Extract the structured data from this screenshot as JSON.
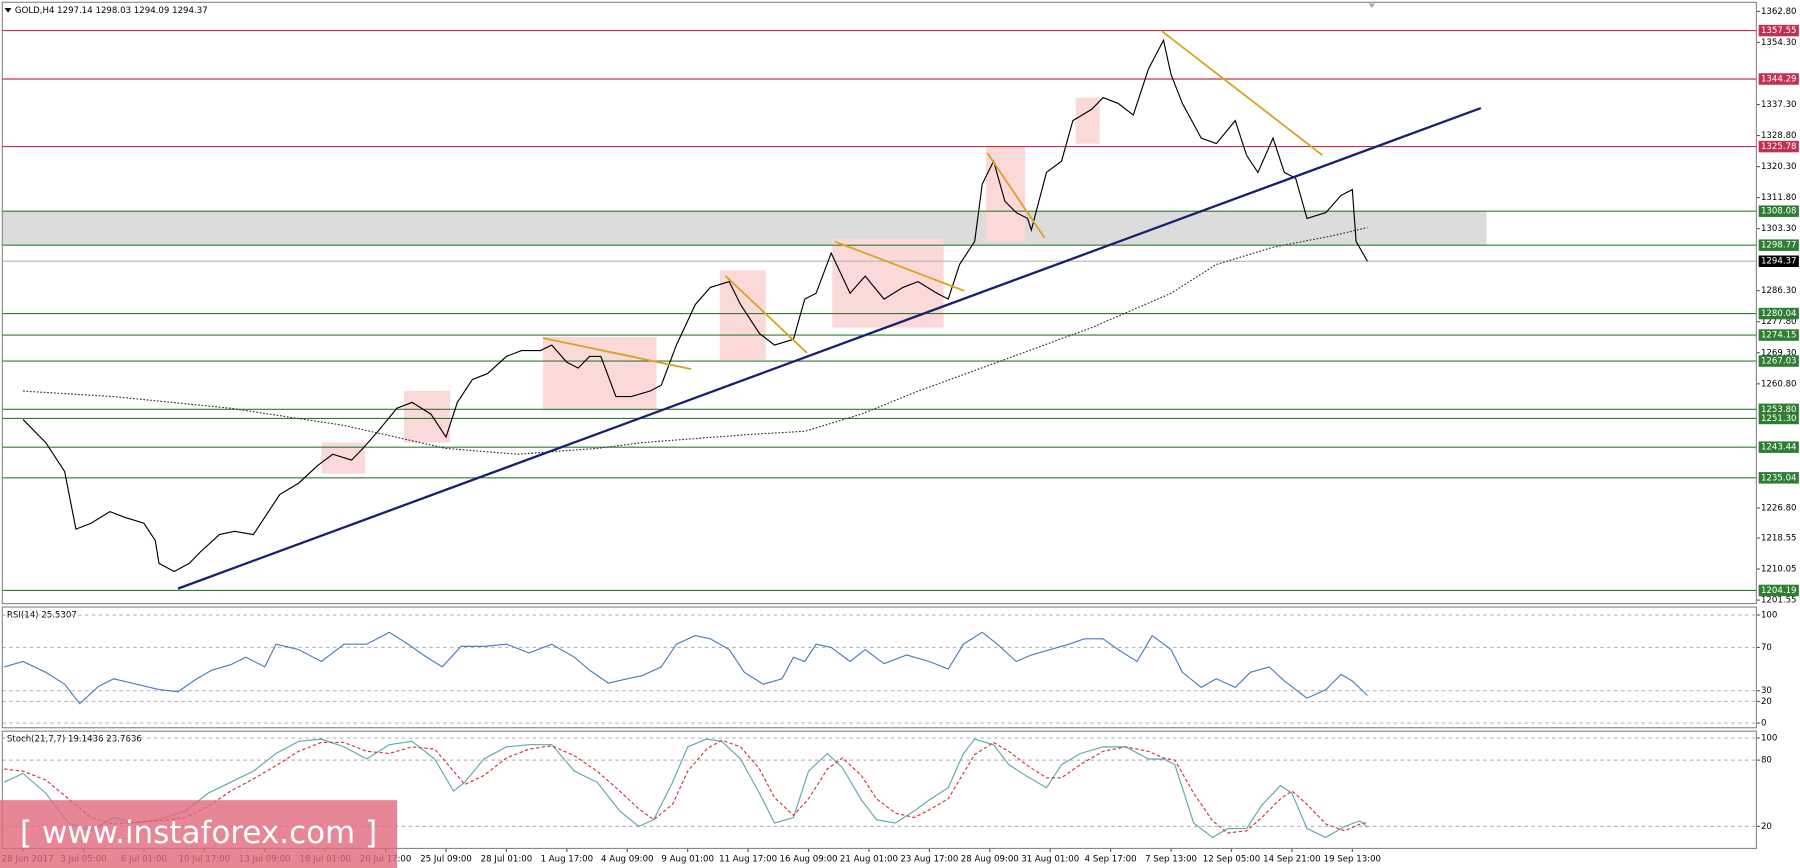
{
  "chart_data": [
    {
      "type": "line",
      "title": "GOLD,H4 1297.14 1298.03 1294.09 1294.37",
      "xlim": [
        -5.5,
        459
      ],
      "xticks": [
        {
          "value": 0,
          "label": "28 Jun 2017"
        },
        {
          "value": 16,
          "label": "3 Jul 05:00"
        },
        {
          "value": 32,
          "label": "6 Jul 01:00"
        },
        {
          "value": 48,
          "label": "10 Jul 17:00"
        },
        {
          "value": 64,
          "label": "13 Jul 09:00"
        },
        {
          "value": 80,
          "label": "18 Jul 01:00"
        },
        {
          "value": 96,
          "label": "20 Jul 17:00"
        },
        {
          "value": 112,
          "label": "25 Jul 09:00"
        },
        {
          "value": 128,
          "label": "28 Jul 01:00"
        },
        {
          "value": 144,
          "label": "1 Aug 17:00"
        },
        {
          "value": 160,
          "label": "4 Aug 09:00"
        },
        {
          "value": 176,
          "label": "9 Aug 01:00"
        },
        {
          "value": 192,
          "label": "11 Aug 17:00"
        },
        {
          "value": 208,
          "label": "16 Aug 09:00"
        },
        {
          "value": 224,
          "label": "21 Aug 01:00"
        },
        {
          "value": 240,
          "label": "23 Aug 17:00"
        },
        {
          "value": 256,
          "label": "28 Aug 09:00"
        },
        {
          "value": 272,
          "label": "31 Aug 01:00"
        },
        {
          "value": 288,
          "label": "4 Sep 17:00"
        },
        {
          "value": 304,
          "label": "7 Sep 13:00"
        },
        {
          "value": 320,
          "label": "12 Sep 05:00"
        },
        {
          "value": 336,
          "label": "14 Sep 21:00"
        },
        {
          "value": 352,
          "label": "19 Sep 13:00"
        }
      ],
      "ylim": [
        1200.6,
        1365.3
      ],
      "yticks": [
        {
          "value": 1362.8,
          "label": "1362.80"
        },
        {
          "value": 1354.3,
          "label": "1354.30"
        },
        {
          "value": 1337.3,
          "label": "1337.30"
        },
        {
          "value": 1328.8,
          "label": "1328.80"
        },
        {
          "value": 1320.3,
          "label": "1320.30"
        },
        {
          "value": 1311.8,
          "label": "1311.80"
        },
        {
          "value": 1303.3,
          "label": "1303.30"
        },
        {
          "value": 1286.3,
          "label": "1286.30"
        },
        {
          "value": 1277.8,
          "label": "1277.80"
        },
        {
          "value": 1269.3,
          "label": "1269.30"
        },
        {
          "value": 1260.8,
          "label": "1260.80"
        },
        {
          "value": 1226.8,
          "label": "1226.80"
        },
        1218.55,
        1210.05,
        1201.55
      ],
      "series": [
        {
          "color": "#000000",
          "x": [
            0,
            6,
            11,
            14,
            18,
            23,
            27,
            32,
            35,
            36,
            40,
            44,
            47,
            52,
            56,
            61,
            65,
            68,
            73,
            78,
            82,
            87,
            90,
            94,
            99,
            103,
            108,
            112,
            115,
            119,
            123,
            128,
            132,
            137,
            140,
            144,
            147,
            150,
            153,
            157,
            161,
            166,
            169,
            173,
            178,
            182,
            187,
            190,
            195,
            199,
            204,
            207,
            210,
            214,
            219,
            223,
            228,
            233,
            237,
            242,
            245,
            248,
            252,
            254,
            257,
            260,
            263,
            266,
            267,
            271,
            275,
            278,
            283,
            286,
            290,
            294,
            298,
            302,
            304,
            307,
            312,
            316,
            321,
            324,
            327,
            331,
            334,
            337,
            340,
            345,
            349,
            352,
            353,
            356
          ],
          "values": [
            1251,
            1244.7,
            1236.8,
            1221,
            1222.6,
            1225.8,
            1224.2,
            1222.6,
            1217.9,
            1211.6,
            1209.4,
            1211.6,
            1214.8,
            1219.5,
            1220.4,
            1219.5,
            1225.8,
            1230.5,
            1233.6,
            1238.4,
            1241.5,
            1239.9,
            1243.1,
            1247.8,
            1254.1,
            1255.7,
            1252.5,
            1246.2,
            1255.7,
            1262,
            1263.6,
            1268.3,
            1269.9,
            1269.9,
            1271.4,
            1266.7,
            1265.1,
            1268.3,
            1268.3,
            1257.3,
            1257.3,
            1258.8,
            1260.4,
            1271.4,
            1282.5,
            1287.2,
            1288.8,
            1282.5,
            1274.6,
            1271.4,
            1273,
            1284,
            1285.6,
            1296.6,
            1285.6,
            1290.3,
            1284,
            1287.2,
            1288.8,
            1285.6,
            1284,
            1293.5,
            1299.8,
            1315.5,
            1321.8,
            1310.8,
            1307.7,
            1306.1,
            1302.9,
            1318.7,
            1321.8,
            1332.9,
            1336,
            1339.2,
            1337.6,
            1334.4,
            1347,
            1354.9,
            1345.5,
            1337.6,
            1328.1,
            1326.6,
            1332.9,
            1323.4,
            1318.7,
            1328.1,
            1318.7,
            1317.1,
            1306.1,
            1307.7,
            1312.4,
            1314,
            1299.8,
            1294.37
          ]
        },
        {
          "color": "#333333",
          "style": "dotted",
          "x": [
            0,
            24,
            55,
            85,
            112,
            131,
            152,
            164,
            192,
            207,
            222,
            237,
            258,
            283,
            304,
            316,
            331,
            347,
            356
          ],
          "values": [
            1258.8,
            1257.3,
            1254.1,
            1249.4,
            1243.1,
            1241.5,
            1243.1,
            1244.7,
            1246.9,
            1247.8,
            1252.5,
            1258.8,
            1266.7,
            1276.2,
            1285.6,
            1293.5,
            1298.2,
            1301.4,
            1303.6
          ]
        }
      ],
      "levels": [
        {
          "value": 1357.55,
          "color": "#c0304f"
        },
        {
          "value": 1344.29,
          "color": "#c0304f"
        },
        {
          "value": 1325.78,
          "color": "#c0304f"
        },
        {
          "value": 1308.08,
          "color": "#2e7d32"
        },
        {
          "value": 1298.77,
          "color": "#2e7d32"
        },
        {
          "value": 1280.04,
          "color": "#2e7d32"
        },
        {
          "value": 1274.15,
          "color": "#2e7d32"
        },
        {
          "value": 1267.03,
          "color": "#2e7d32"
        },
        {
          "value": 1253.8,
          "label": "1253.80",
          "color": "#2e7d32"
        },
        {
          "value": 1251.3,
          "label": "1251.30",
          "color": "#2e7d32"
        },
        {
          "value": 1243.44,
          "color": "#2e7d32"
        },
        {
          "value": 1235.04,
          "color": "#2e7d32"
        },
        {
          "value": 1204.19,
          "color": "#2e7d32"
        }
      ],
      "last": {
        "value": 1294.37,
        "color": "#000000"
      }
    },
    {
      "type": "line",
      "title": "RSI(14) 25.5307",
      "ylim": [
        -4.3,
        107.4
      ],
      "yticks": [
        100,
        70,
        30,
        20,
        0
      ],
      "grid": "dashed",
      "series": [
        {
          "color": "#4a7fb5",
          "x": [
            -5,
            0,
            6,
            11,
            15,
            20,
            24,
            30,
            36,
            41,
            46,
            50,
            55,
            59,
            64,
            67,
            73,
            79,
            85,
            91,
            97,
            102,
            106,
            111,
            116,
            122,
            128,
            134,
            140,
            146,
            150,
            155,
            160,
            164,
            169,
            173,
            178,
            182,
            187,
            191,
            196,
            201,
            204,
            207,
            210,
            214,
            219,
            223,
            228,
            234,
            240,
            245,
            249,
            254,
            258,
            263,
            267,
            272,
            277,
            281,
            286,
            290,
            295,
            299,
            304,
            307,
            312,
            316,
            321,
            325,
            330,
            334,
            340,
            345,
            349,
            352,
            356
          ],
          "values": [
            52,
            57,
            47,
            36,
            18,
            34,
            41,
            36,
            31,
            29,
            41,
            49,
            54,
            61,
            52,
            73,
            68,
            57,
            73,
            73,
            84,
            73,
            63,
            52,
            71,
            71,
            73,
            65,
            73,
            61,
            49,
            37,
            41,
            44,
            52,
            73,
            81,
            78,
            68,
            47,
            36,
            41,
            61,
            57,
            73,
            70,
            57,
            68,
            55,
            63,
            57,
            50,
            73,
            84,
            73,
            57,
            63,
            68,
            73,
            78,
            78,
            68,
            57,
            81,
            68,
            47,
            33,
            41,
            33,
            47,
            52,
            39,
            23,
            31,
            45,
            39,
            25.5307
          ]
        }
      ]
    },
    {
      "type": "line",
      "title": "Stoch(21,7,7) 19.1436 23.7636",
      "ylim": [
        0,
        106.2
      ],
      "yticks": [
        100,
        80,
        20
      ],
      "grid": "dashed",
      "series": [
        {
          "color": "#5fa8b0",
          "x": [
            -5,
            0,
            6,
            12,
            18,
            24,
            30,
            36,
            43,
            49,
            55,
            61,
            67,
            73,
            79,
            85,
            91,
            97,
            103,
            109,
            114,
            117,
            122,
            128,
            134,
            140,
            146,
            152,
            158,
            163,
            167,
            172,
            176,
            181,
            185,
            190,
            195,
            199,
            204,
            208,
            213,
            217,
            222,
            226,
            231,
            236,
            240,
            245,
            249,
            252,
            257,
            261,
            266,
            271,
            275,
            280,
            286,
            292,
            298,
            302,
            305,
            310,
            315,
            319,
            324,
            328,
            333,
            336,
            340,
            345,
            350,
            354,
            356
          ],
          "values": [
            60,
            68,
            50,
            23,
            16,
            28,
            23,
            26,
            34,
            50,
            60,
            70,
            86,
            97,
            99,
            92,
            81,
            94,
            97,
            81,
            52,
            60,
            81,
            92,
            94,
            94,
            70,
            60,
            34,
            20,
            26,
            60,
            92,
            99,
            97,
            81,
            50,
            23,
            28,
            70,
            86,
            73,
            44,
            26,
            23,
            34,
            44,
            55,
            86,
            99,
            94,
            76,
            65,
            55,
            76,
            86,
            92,
            92,
            81,
            81,
            76,
            23,
            10,
            18,
            18,
            39,
            57,
            50,
            18,
            10,
            20,
            25,
            19.1436
          ]
        },
        {
          "color": "#d0363a",
          "style": "dashed",
          "x": [
            -5,
            0,
            6,
            12,
            18,
            24,
            30,
            36,
            43,
            49,
            55,
            61,
            67,
            73,
            79,
            85,
            91,
            97,
            103,
            109,
            114,
            117,
            122,
            128,
            134,
            140,
            146,
            152,
            158,
            163,
            167,
            172,
            176,
            181,
            185,
            190,
            195,
            199,
            204,
            208,
            213,
            217,
            222,
            226,
            231,
            236,
            240,
            245,
            249,
            252,
            257,
            261,
            266,
            271,
            275,
            280,
            286,
            292,
            298,
            302,
            305,
            310,
            315,
            319,
            324,
            328,
            333,
            336,
            340,
            345,
            350,
            354,
            356
          ],
          "values": [
            72,
            70,
            62,
            45,
            28,
            22,
            24,
            25,
            28,
            38,
            52,
            63,
            75,
            88,
            96,
            96,
            88,
            86,
            92,
            90,
            70,
            58,
            66,
            82,
            90,
            93,
            84,
            70,
            52,
            36,
            26,
            40,
            70,
            90,
            98,
            92,
            72,
            46,
            30,
            45,
            72,
            82,
            66,
            45,
            32,
            28,
            35,
            45,
            68,
            85,
            96,
            88,
            75,
            64,
            64,
            76,
            88,
            92,
            88,
            82,
            80,
            50,
            25,
            14,
            16,
            28,
            45,
            52,
            40,
            22,
            16,
            22,
            23.7636
          ]
        }
      ]
    }
  ],
  "watermark": "[ www.instaforex.com ]"
}
